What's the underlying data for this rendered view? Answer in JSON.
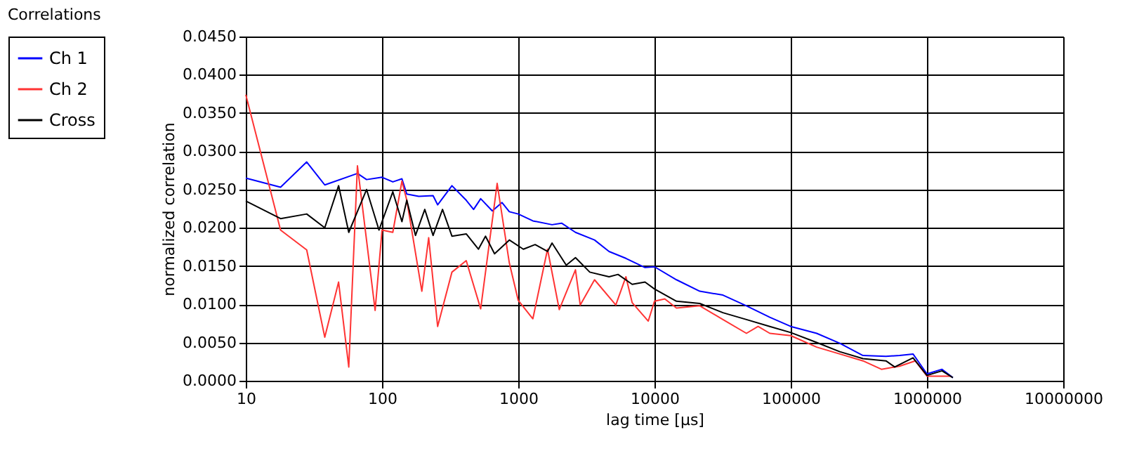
{
  "chart_data": {
    "type": "line",
    "title": "Correlations",
    "xlabel": "lag time [µs]",
    "ylabel": "normalized correlation",
    "log": "x",
    "grid": true,
    "legend": "left",
    "marker": "none",
    "line_style": "solid",
    "xlim": [
      10,
      10000000
    ],
    "xticks": [
      10,
      100,
      1000,
      10000,
      100000,
      1000000,
      10000000
    ],
    "ylim": [
      0,
      0.045
    ],
    "yticks": [
      {
        "value": 0,
        "label": "0.0000"
      },
      {
        "value": 0.005,
        "label": "0.0050"
      },
      {
        "value": 0.01,
        "label": "0.0100"
      },
      {
        "value": 0.015,
        "label": "0.0150"
      },
      {
        "value": 0.02,
        "label": "0.0200"
      },
      {
        "value": 0.025,
        "label": "0.0250"
      },
      {
        "value": 0.03,
        "label": "0.0300"
      },
      {
        "value": 0.035,
        "label": "0.0350"
      },
      {
        "value": 0.04,
        "label": "0.0400"
      },
      {
        "value": 0.045,
        "label": "0.0450"
      }
    ],
    "series": [
      {
        "name": "Ch 1",
        "color": "#0000ff",
        "x": [
          10,
          18,
          28,
          38,
          66,
          77,
          100,
          120,
          140,
          152,
          186,
          237,
          256,
          326,
          415,
          470,
          530,
          645,
          760,
          860,
          1000,
          1280,
          1770,
          2080,
          2630,
          3630,
          4640,
          6170,
          8520,
          10000,
          14500,
          21500,
          31800,
          47300,
          70200,
          100000,
          155000,
          229000,
          339000,
          500000,
          630000,
          790000,
          1000000,
          1290000,
          1550000
        ],
        "values": [
          0.0265,
          0.0253,
          0.0286,
          0.0256,
          0.0271,
          0.0263,
          0.0266,
          0.026,
          0.0264,
          0.0244,
          0.0241,
          0.0242,
          0.023,
          0.0255,
          0.0236,
          0.0224,
          0.0238,
          0.0222,
          0.0233,
          0.0221,
          0.0218,
          0.0209,
          0.0204,
          0.0206,
          0.0194,
          0.0184,
          0.0169,
          0.016,
          0.0148,
          0.0149,
          0.0132,
          0.0117,
          0.0112,
          0.0098,
          0.0083,
          0.0071,
          0.0062,
          0.0049,
          0.0033,
          0.0032,
          0.0033,
          0.0035,
          0.0009,
          0.0015,
          0.0004
        ]
      },
      {
        "name": "Ch 2",
        "color": "#ff3333",
        "x": [
          10,
          18,
          28,
          38,
          48,
          57,
          66,
          89,
          100,
          120,
          140,
          152,
          196,
          220,
          256,
          326,
          415,
          530,
          700,
          860,
          1000,
          1280,
          1640,
          2000,
          2630,
          2850,
          3630,
          5200,
          6170,
          6860,
          9000,
          10000,
          11900,
          14500,
          21500,
          31800,
          47300,
          57600,
          70200,
          100000,
          155000,
          229000,
          339000,
          463000,
          630000,
          820000,
          1000000,
          1500000
        ],
        "values": [
          0.0374,
          0.0197,
          0.0171,
          0.0057,
          0.0129,
          0.0018,
          0.0281,
          0.0092,
          0.0197,
          0.0194,
          0.0261,
          0.0236,
          0.0117,
          0.0187,
          0.0071,
          0.0142,
          0.0157,
          0.0094,
          0.0258,
          0.0154,
          0.0105,
          0.0081,
          0.0172,
          0.0093,
          0.0145,
          0.0099,
          0.0132,
          0.0099,
          0.0136,
          0.0102,
          0.0078,
          0.0104,
          0.0107,
          0.0095,
          0.0098,
          0.008,
          0.0062,
          0.0071,
          0.0062,
          0.0059,
          0.0044,
          0.0035,
          0.0026,
          0.0015,
          0.0019,
          0.0026,
          0.0006,
          0.0006
        ]
      },
      {
        "name": "Cross",
        "color": "#000000",
        "x": [
          10,
          18,
          28,
          38,
          48,
          57,
          77,
          95,
          120,
          140,
          152,
          176,
          206,
          237,
          278,
          326,
          415,
          510,
          575,
          670,
          860,
          1090,
          1330,
          1640,
          1770,
          2250,
          2630,
          3350,
          4640,
          5400,
          6860,
          8520,
          10000,
          14500,
          21500,
          31800,
          47300,
          70200,
          100000,
          155000,
          229000,
          339000,
          500000,
          580000,
          790000,
          1000000,
          1290000,
          1550000
        ],
        "values": [
          0.0235,
          0.0212,
          0.0218,
          0.02,
          0.0255,
          0.0194,
          0.025,
          0.0197,
          0.0247,
          0.0208,
          0.0236,
          0.019,
          0.0224,
          0.019,
          0.0224,
          0.0189,
          0.0192,
          0.0172,
          0.0189,
          0.0166,
          0.0184,
          0.0172,
          0.0178,
          0.0169,
          0.018,
          0.0151,
          0.0161,
          0.0142,
          0.0136,
          0.0139,
          0.0126,
          0.0129,
          0.012,
          0.0104,
          0.0101,
          0.0089,
          0.008,
          0.0071,
          0.0063,
          0.005,
          0.0038,
          0.0029,
          0.0026,
          0.0018,
          0.003,
          0.0007,
          0.0013,
          0.0004
        ]
      }
    ]
  }
}
